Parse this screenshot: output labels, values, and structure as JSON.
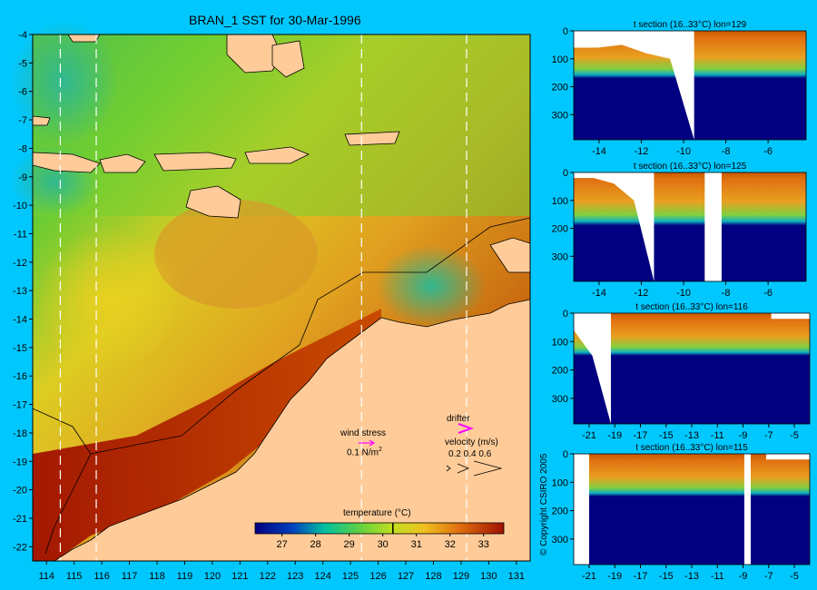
{
  "chart_data": [
    {
      "type": "heatmap",
      "title": "BRAN_1 SST for 30-Mar-1996",
      "xlim": [
        113.5,
        131.5
      ],
      "ylim": [
        -22.5,
        -4
      ],
      "xticks": [
        114,
        115,
        116,
        117,
        118,
        119,
        120,
        121,
        122,
        123,
        124,
        125,
        126,
        127,
        128,
        129,
        130,
        131
      ],
      "yticks": [
        -4,
        -5,
        -6,
        -7,
        -8,
        -9,
        -10,
        -11,
        -12,
        -13,
        -14,
        -15,
        -16,
        -17,
        -18,
        -19,
        -20,
        -21,
        -22
      ],
      "section_lines_lon": [
        114.5,
        115.8,
        125.4,
        129.2
      ],
      "colorbar": {
        "title": "temperature (°C)",
        "ticks": [
          27,
          28,
          29,
          30,
          31,
          32,
          33
        ],
        "range": [
          26.2,
          33.6
        ],
        "marker": 30.3
      },
      "legend": {
        "wind_stress": "wind stress",
        "wind_scale": "0.1 N/m",
        "wind_sup": "2",
        "drifter": "drifter",
        "velocity": "velocity (m/s)",
        "velocity_scale": "0.2 0.4 0.6"
      }
    },
    {
      "type": "heatmap",
      "title": "t section (16..33°C) lon=129",
      "xticks": [
        -14,
        -12,
        -10,
        -8,
        -6
      ],
      "xlim": [
        -15.2,
        -4.2
      ],
      "yticks": [
        0,
        100,
        200,
        300
      ],
      "ylim": [
        390,
        0
      ],
      "thermocline_depth_m": 170
    },
    {
      "type": "heatmap",
      "title": "t section (16..33°C) lon=125",
      "xticks": [
        -14,
        -12,
        -10,
        -8,
        -6
      ],
      "xlim": [
        -15.2,
        -4.2
      ],
      "yticks": [
        0,
        100,
        200,
        300
      ],
      "ylim": [
        390,
        0
      ],
      "thermocline_depth_m": 190
    },
    {
      "type": "heatmap",
      "title": "t section (16..33°C) lon=116",
      "xticks": [
        -21,
        -19,
        -17,
        -15,
        -13,
        -11,
        -9,
        -7,
        -5
      ],
      "xlim": [
        -22.2,
        -3.8
      ],
      "yticks": [
        0,
        100,
        200,
        300
      ],
      "ylim": [
        390,
        0
      ],
      "thermocline_depth_m": 150
    },
    {
      "type": "heatmap",
      "title": "t section (16..33°C) lon=115",
      "xticks": [
        -21,
        -19,
        -17,
        -15,
        -13,
        -11,
        -9,
        -7,
        -5
      ],
      "xlim": [
        -22.2,
        -3.8
      ],
      "yticks": [
        0,
        100,
        200,
        300
      ],
      "ylim": [
        390,
        0
      ],
      "thermocline_depth_m": 150
    }
  ],
  "copyright": "© Copyright CSIRO 2005",
  "colors": {
    "background": "#00c8ff",
    "land": "#ffcc99",
    "deep": "#000080",
    "warm": "#c85a00",
    "hot": "#8b0000"
  }
}
